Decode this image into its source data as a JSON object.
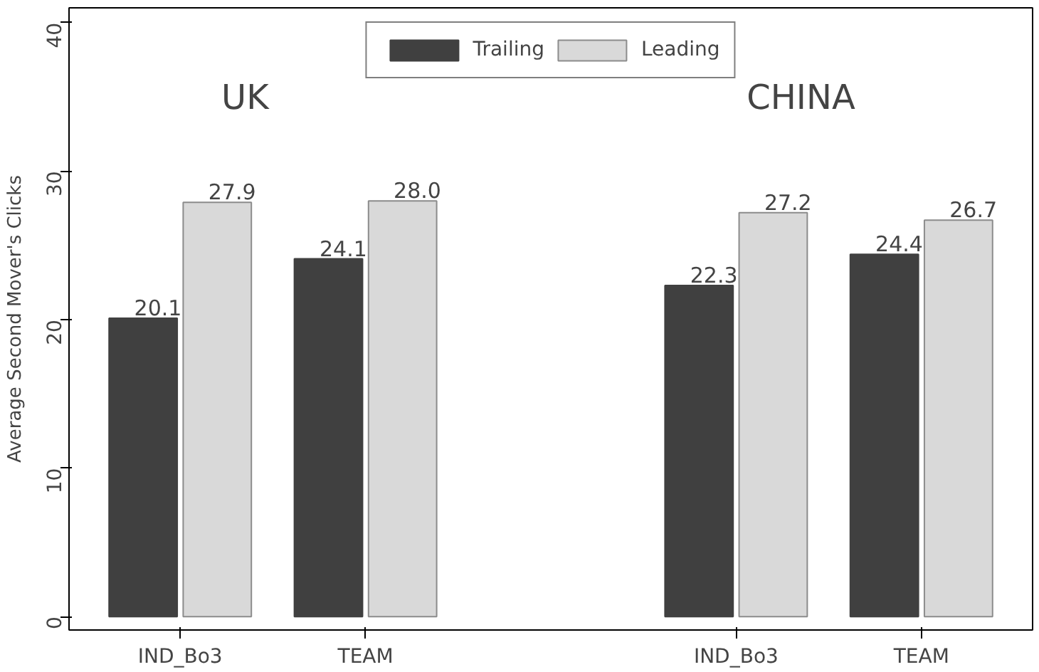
{
  "chart_data": {
    "type": "bar",
    "ylabel": "Average Second Mover's Clicks",
    "categories": [
      "IND_Bo3",
      "TEAM",
      null,
      "IND_Bo3",
      "TEAM"
    ],
    "series": [
      {
        "name": "Trailing",
        "color": "#404040",
        "values": [
          20.1,
          24.1,
          null,
          22.3,
          24.4
        ],
        "value_labels": [
          "20.1",
          "24.1",
          null,
          "22.3",
          "24.4"
        ]
      },
      {
        "name": "Leading",
        "color": "#d9d9d9",
        "values": [
          27.9,
          28.0,
          null,
          27.2,
          26.7
        ],
        "value_labels": [
          "27.9",
          "28.0",
          null,
          "27.2",
          "26.7"
        ]
      }
    ],
    "ylim": [
      -0.9,
      41
    ],
    "yticks": [
      0,
      10,
      20,
      30,
      40
    ],
    "grid": false,
    "legend": "top",
    "annotations": [
      "UK",
      "CHINA"
    ]
  }
}
